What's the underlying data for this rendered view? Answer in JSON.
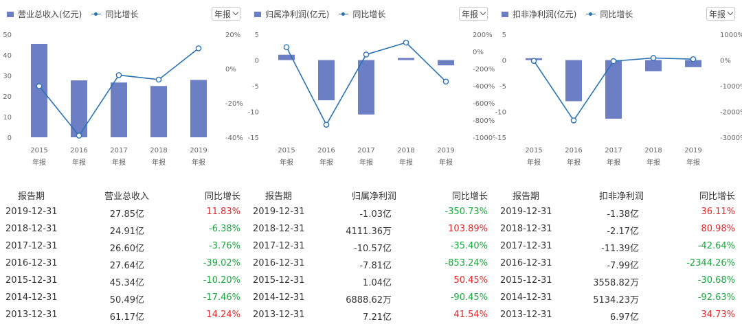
{
  "report_dropdown": "年报",
  "colors": {
    "bar": "#6d7fc4",
    "line": "#2a72b5",
    "axis_text": "#666666",
    "positive": "#e5262a",
    "negative": "#18a83d"
  },
  "table_headers": {
    "period": "报告期",
    "growth": "同比增长"
  },
  "panels": [
    {
      "legend_bar": "营业总收入(亿元)",
      "legend_line": "同比增长",
      "table_metric": "营业总收入",
      "rows": [
        {
          "period": "2019-12-31",
          "value": "27.85亿",
          "growth": "11.83%"
        },
        {
          "period": "2018-12-31",
          "value": "24.91亿",
          "growth": "-6.38%"
        },
        {
          "period": "2017-12-31",
          "value": "26.60亿",
          "growth": "-3.76%"
        },
        {
          "period": "2016-12-31",
          "value": "27.64亿",
          "growth": "-39.02%"
        },
        {
          "period": "2015-12-31",
          "value": "45.34亿",
          "growth": "-10.20%"
        },
        {
          "period": "2014-12-31",
          "value": "50.49亿",
          "growth": "-17.46%"
        },
        {
          "period": "2013-12-31",
          "value": "61.17亿",
          "growth": "14.24%"
        }
      ]
    },
    {
      "legend_bar": "归属净利润(亿元)",
      "legend_line": "同比增长",
      "table_metric": "归属净利润",
      "rows": [
        {
          "period": "2019-12-31",
          "value": "-1.03亿",
          "growth": "-350.73%"
        },
        {
          "period": "2018-12-31",
          "value": "4111.36万",
          "growth": "103.89%"
        },
        {
          "period": "2017-12-31",
          "value": "-10.57亿",
          "growth": "-35.40%"
        },
        {
          "period": "2016-12-31",
          "value": "-7.81亿",
          "growth": "-853.24%"
        },
        {
          "period": "2015-12-31",
          "value": "1.04亿",
          "growth": "50.45%"
        },
        {
          "period": "2014-12-31",
          "value": "6888.62万",
          "growth": "-90.45%"
        },
        {
          "period": "2013-12-31",
          "value": "7.21亿",
          "growth": "41.54%"
        }
      ]
    },
    {
      "legend_bar": "扣非净利润(亿元)",
      "legend_line": "同比增长",
      "table_metric": "扣非净利润",
      "rows": [
        {
          "period": "2019-12-31",
          "value": "-1.38亿",
          "growth": "36.11%"
        },
        {
          "period": "2018-12-31",
          "value": "-2.17亿",
          "growth": "80.98%"
        },
        {
          "period": "2017-12-31",
          "value": "-11.39亿",
          "growth": "-42.64%"
        },
        {
          "period": "2016-12-31",
          "value": "-7.99亿",
          "growth": "-2344.26%"
        },
        {
          "period": "2015-12-31",
          "value": "3558.82万",
          "growth": "-30.68%"
        },
        {
          "period": "2014-12-31",
          "value": "5134.23万",
          "growth": "-92.63%"
        },
        {
          "period": "2013-12-31",
          "value": "6.97亿",
          "growth": "34.73%"
        }
      ]
    }
  ],
  "chart_data": [
    {
      "type": "bar",
      "categories": [
        "2015",
        "2016",
        "2017",
        "2018",
        "2019"
      ],
      "category_sublabel": "年报",
      "series": [
        {
          "name": "营业总收入(亿元)",
          "values": [
            45.34,
            27.64,
            26.6,
            24.91,
            27.85
          ],
          "axis": "left"
        },
        {
          "name": "同比增长",
          "type": "line",
          "values": [
            -10.2,
            -39.02,
            -3.76,
            -6.38,
            11.83
          ],
          "axis": "right"
        }
      ],
      "ylim_left": [
        0,
        50
      ],
      "yticks_left": [
        "0",
        "10",
        "20",
        "30",
        "40",
        "50"
      ],
      "ylim_right": [
        -40,
        20
      ],
      "yticks_right": [
        "-40%",
        "-20%",
        "0%",
        "20%"
      ]
    },
    {
      "type": "bar",
      "categories": [
        "2015",
        "2016",
        "2017",
        "2018",
        "2019"
      ],
      "category_sublabel": "年报",
      "series": [
        {
          "name": "归属净利润(亿元)",
          "values": [
            1.04,
            -7.81,
            -10.57,
            0.41,
            -1.03
          ],
          "axis": "left"
        },
        {
          "name": "同比增长",
          "type": "line",
          "values": [
            50.45,
            -853.24,
            -35.4,
            103.89,
            -350.73
          ],
          "axis": "right"
        }
      ],
      "ylim_left": [
        -15,
        5
      ],
      "yticks_left": [
        "-15",
        "-10",
        "-5",
        "0",
        "5"
      ],
      "ylim_right": [
        -1000,
        200
      ],
      "yticks_right": [
        "-1000%",
        "-800%",
        "-600%",
        "-400%",
        "-200%",
        "0%",
        "200%"
      ]
    },
    {
      "type": "bar",
      "categories": [
        "2015",
        "2016",
        "2017",
        "2018",
        "2019"
      ],
      "category_sublabel": "年报",
      "series": [
        {
          "name": "扣非净利润(亿元)",
          "values": [
            0.36,
            -7.99,
            -11.39,
            -2.17,
            -1.38
          ],
          "axis": "left"
        },
        {
          "name": "同比增长",
          "type": "line",
          "values": [
            -30.68,
            -2344.26,
            -42.64,
            80.98,
            36.11
          ],
          "axis": "right"
        }
      ],
      "ylim_left": [
        -15,
        5
      ],
      "yticks_left": [
        "-15",
        "-10",
        "-5",
        "0",
        "5"
      ],
      "ylim_right": [
        -3000,
        1000
      ],
      "yticks_right": [
        "-3000%",
        "-2000%",
        "-1000%",
        "0%",
        "1000%"
      ]
    }
  ]
}
